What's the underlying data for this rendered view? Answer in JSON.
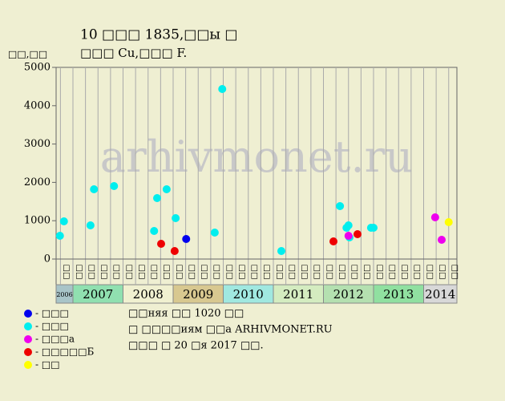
{
  "chart_data": {
    "type": "scatter",
    "title": "10 □□□ 1835,□□ы □",
    "subtitle": "□□□ Cu,□□□ F.",
    "y_label": "□□,□□",
    "watermark": "arhivmonet.ru",
    "xlim": [
      2006.664,
      2014.664
    ],
    "ylim": [
      0,
      5000
    ],
    "yticks": [
      0,
      1000,
      2000,
      3000,
      4000,
      5000
    ],
    "years": [
      {
        "value": 2006,
        "label": "2006",
        "color": "#a8c4c8"
      },
      {
        "value": 2007,
        "label": "2007",
        "color": "#90e0b0"
      },
      {
        "value": 2008,
        "label": "2008",
        "color": "#f0f0d0"
      },
      {
        "value": 2009,
        "label": "2009",
        "color": "#d8c890"
      },
      {
        "value": 2010,
        "label": "2010",
        "color": "#a0e8e0"
      },
      {
        "value": 2011,
        "label": "2011",
        "color": "#d4ecc0"
      },
      {
        "value": 2012,
        "label": "2012",
        "color": "#b4e0b0"
      },
      {
        "value": 2013,
        "label": "2013",
        "color": "#90e0a0"
      },
      {
        "value": 2014,
        "label": "2014",
        "color": "#d8d8d8"
      }
    ],
    "quarter_labels": [
      "□□",
      "□□",
      "□□",
      "□□",
      "□□",
      "□□",
      "□□",
      "□□",
      "□□",
      "□□",
      "□□",
      "□□",
      "□□",
      "□□",
      "□□",
      "□□",
      "□□",
      "□□",
      "□□",
      "□□",
      "□□",
      "□□",
      "□□",
      "□□",
      "□□",
      "□□",
      "□□",
      "□□",
      "□□",
      "□□",
      "□□",
      "□□"
    ],
    "series": [
      {
        "name": "- □□□",
        "color": "#0000ee",
        "x": [
          2009.26
        ],
        "values": [
          523
        ]
      },
      {
        "name": "- □□□",
        "color": "#00eeee",
        "x": [
          2006.74,
          2006.82,
          2007.35,
          2007.42,
          2007.82,
          2008.62,
          2008.68,
          2008.87,
          2009.05,
          2009.83,
          2009.98,
          2011.16,
          2012.33,
          2012.46,
          2012.5,
          2012.52,
          2012.95,
          2013.0
        ],
        "values": [
          607,
          983,
          879,
          1820,
          1904,
          732,
          1590,
          1820,
          1067,
          690,
          4435,
          209,
          1381,
          816,
          879,
          565,
          816,
          816
        ]
      },
      {
        "name": "- □□□а",
        "color": "#ee00ee",
        "x": [
          2012.5,
          2014.23,
          2014.36
        ],
        "values": [
          607,
          1088,
          502
        ]
      },
      {
        "name": "- □□□□□Б",
        "color": "#ee0000",
        "x": [
          2008.76,
          2009.03,
          2012.2,
          2012.68
        ],
        "values": [
          397,
          209,
          460,
          649
        ]
      },
      {
        "name": "- □□",
        "color": "#ffff00",
        "x": [
          2014.5
        ],
        "values": [
          962
        ]
      }
    ],
    "notes": [
      "□□няя □□ 1020 □□",
      "□ □□□□иям □□а ARHIVMONET.RU",
      "□□□ □ 20 □я 2017 □□."
    ]
  }
}
